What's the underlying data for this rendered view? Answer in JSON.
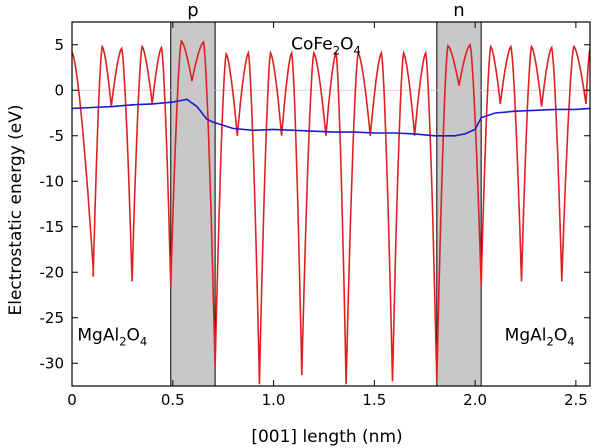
{
  "chart_data": {
    "type": "line",
    "title": "",
    "xlabel": "[001] length (nm)",
    "ylabel": "Electrostatic energy (eV)",
    "xlim": [
      0,
      2.57
    ],
    "ylim": [
      -32.5,
      7.5
    ],
    "xticks": [
      "0",
      "0.5",
      "1.0",
      "1.5",
      "2.0",
      "2.5"
    ],
    "xtick_values": [
      0,
      0.5,
      1.0,
      1.5,
      2.0,
      2.5
    ],
    "yticks": [
      "5",
      "0",
      "-5",
      "-10",
      "-15",
      "-20",
      "-25",
      "-30"
    ],
    "ytick_values": [
      5,
      0,
      -5,
      -10,
      -15,
      -20,
      -25,
      -30
    ],
    "grid": false,
    "zero_line": true,
    "shaded_regions": [
      {
        "label": "p",
        "x_start": 0.49,
        "x_end": 0.71,
        "color": "#c8c8c8"
      },
      {
        "label": "n",
        "x_start": 1.81,
        "x_end": 2.03,
        "color": "#c8c8c8"
      }
    ],
    "region_labels": [
      {
        "base": "MgAl",
        "sub1": "2",
        "mid": "O",
        "sub2": "4",
        "x": 0.2,
        "y": -27.5
      },
      {
        "base": "CoFe",
        "sub1": "2",
        "mid": "O",
        "sub2": "4",
        "x": 1.26,
        "y": 4.5
      },
      {
        "base": "MgAl",
        "sub1": "2",
        "mid": "O",
        "sub2": "4",
        "x": 2.32,
        "y": -27.5
      }
    ],
    "series": [
      {
        "color": "#e02020",
        "minima": [
          [
            0.105,
            -20.5
          ],
          [
            0.195,
            -1.8
          ],
          [
            0.298,
            -21.0
          ],
          [
            0.398,
            -1.5
          ],
          [
            0.49,
            -21.5
          ],
          [
            0.595,
            1.0
          ],
          [
            0.71,
            -30.5
          ],
          [
            0.82,
            -5.0
          ],
          [
            0.93,
            -32.3
          ],
          [
            1.04,
            -5.0
          ],
          [
            1.14,
            -31.3
          ],
          [
            1.26,
            -5.0
          ],
          [
            1.36,
            -32.3
          ],
          [
            1.48,
            -5.0
          ],
          [
            1.59,
            -32.0
          ],
          [
            1.7,
            -5.0
          ],
          [
            1.81,
            -32.0
          ],
          [
            1.92,
            0.5
          ],
          [
            2.03,
            -21.5
          ],
          [
            2.125,
            -1.5
          ],
          [
            2.23,
            -21.0
          ],
          [
            2.33,
            -1.8
          ],
          [
            2.43,
            -21.0
          ],
          [
            2.55,
            -1.5
          ]
        ],
        "peaks": [
          4.3,
          4.8,
          4.6,
          4.8,
          4.7,
          5.4,
          5.3,
          4.0,
          4.1,
          4.1,
          4.1,
          4.1,
          4.1,
          4.1,
          4.1,
          4.1,
          4.1,
          4.9,
          5.0,
          4.8,
          4.8,
          4.8,
          4.7,
          4.8,
          4.5
        ]
      },
      {
        "color": "#1a1acc",
        "x": [
          0,
          0.1,
          0.2,
          0.3,
          0.4,
          0.5,
          0.57,
          0.62,
          0.67,
          0.7,
          0.8,
          0.9,
          1.0,
          1.1,
          1.2,
          1.3,
          1.4,
          1.5,
          1.6,
          1.7,
          1.8,
          1.9,
          1.95,
          2.0,
          2.03,
          2.1,
          2.2,
          2.3,
          2.4,
          2.5,
          2.57
        ],
        "y": [
          -2.0,
          -1.9,
          -1.8,
          -1.6,
          -1.5,
          -1.3,
          -1.0,
          -1.8,
          -3.2,
          -3.5,
          -4.2,
          -4.4,
          -4.3,
          -4.4,
          -4.5,
          -4.6,
          -4.6,
          -4.7,
          -4.7,
          -4.8,
          -5.0,
          -5.0,
          -4.8,
          -4.3,
          -3.0,
          -2.5,
          -2.3,
          -2.2,
          -2.1,
          -2.1,
          -2.0
        ]
      }
    ]
  }
}
